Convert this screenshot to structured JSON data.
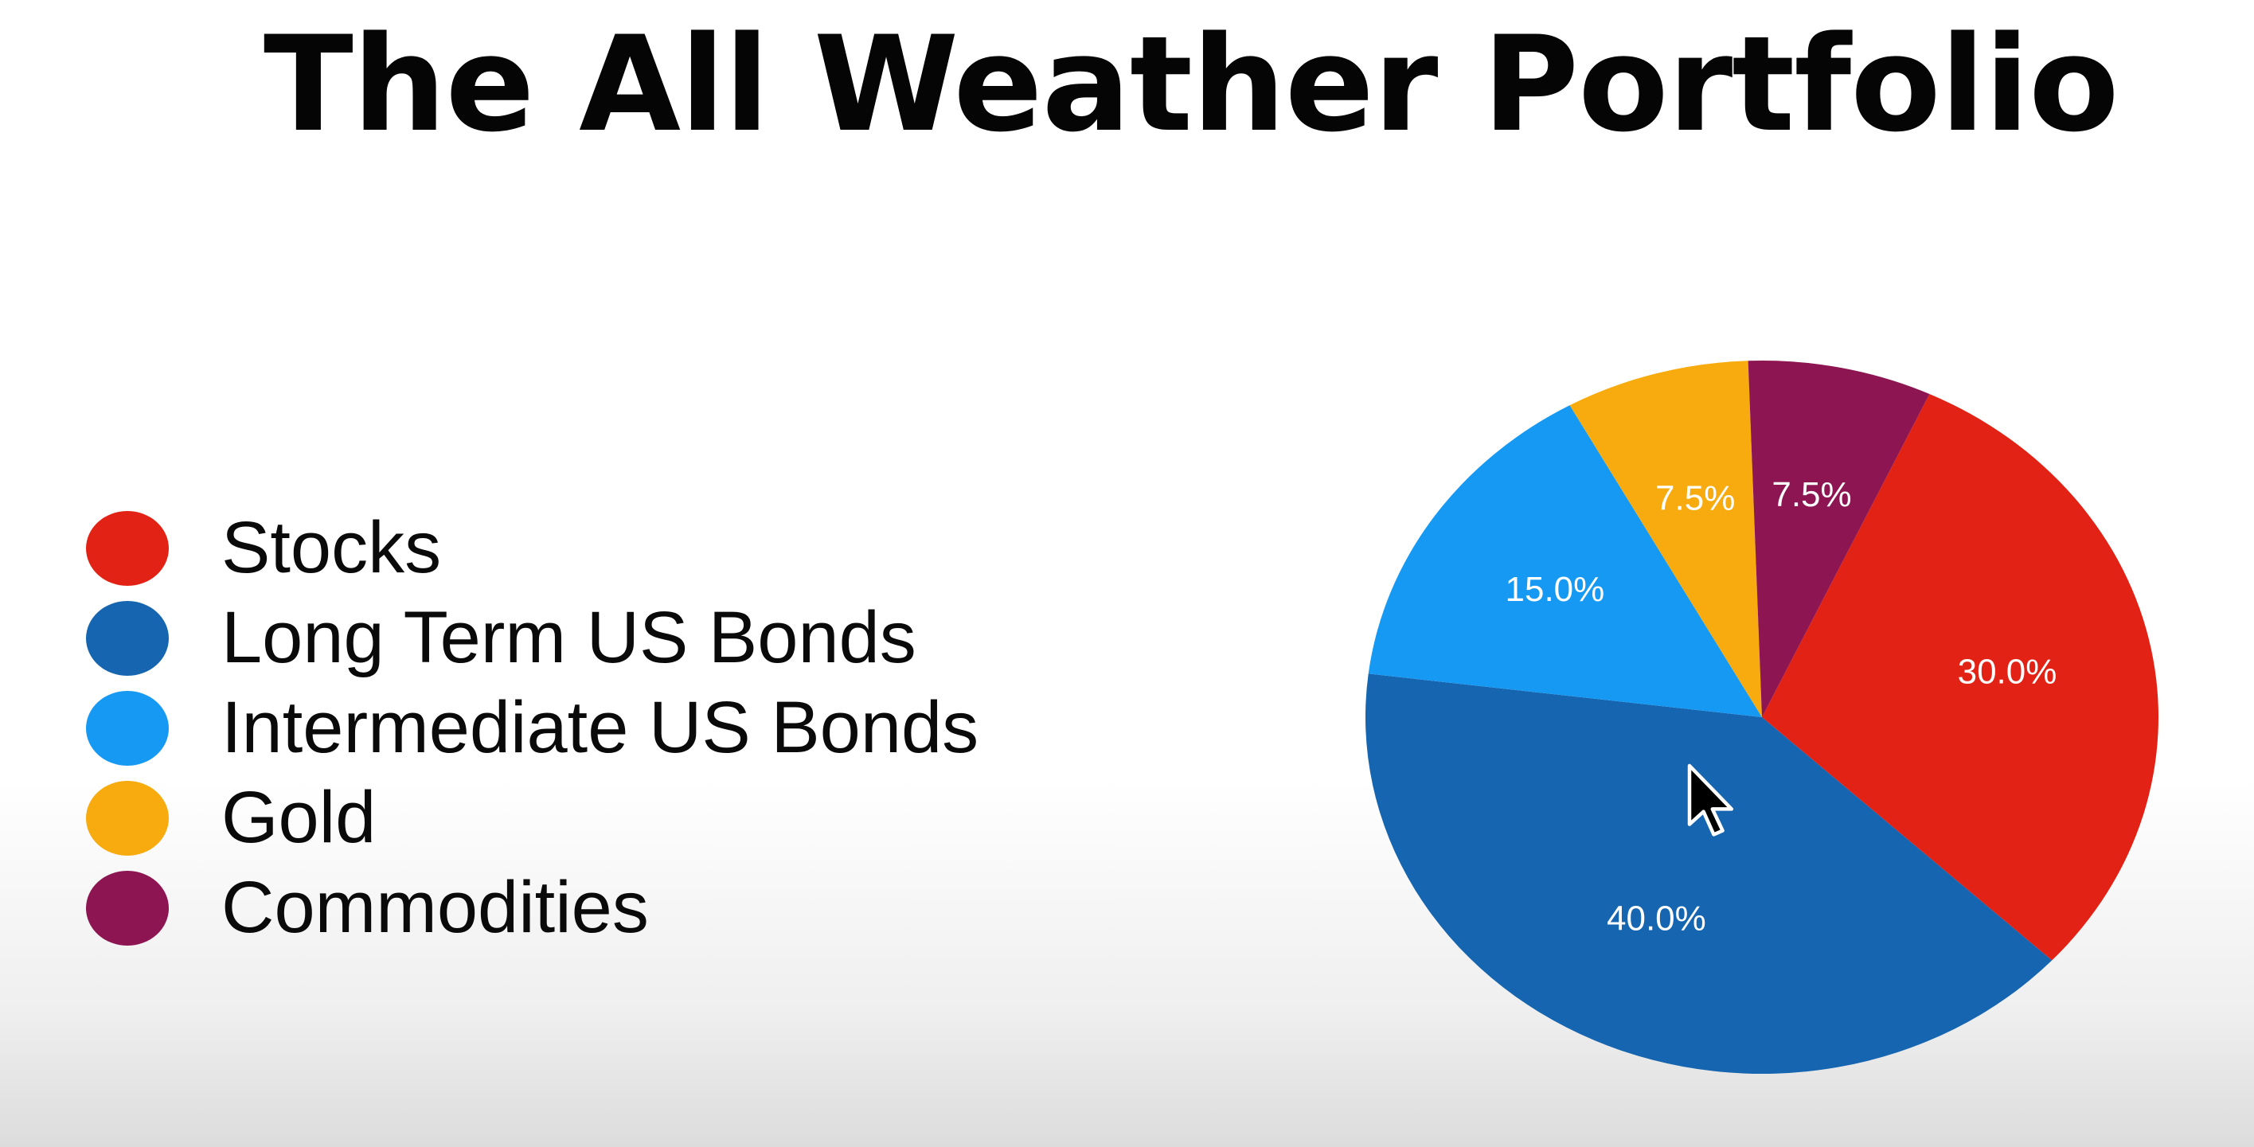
{
  "slide": {
    "title": "The All Weather Portfolio"
  },
  "chart_data": {
    "type": "pie",
    "title": "The All Weather Portfolio",
    "categories": [
      "Stocks",
      "Long Term US Bonds",
      "Intermediate US Bonds",
      "Gold",
      "Commodities"
    ],
    "values": [
      30.0,
      40.0,
      15.0,
      7.5,
      7.5
    ],
    "value_labels": [
      "30.0%",
      "40.0%",
      "15.0%",
      "7.5%",
      "7.5%"
    ],
    "colors": [
      "#e32216",
      "#1565b0",
      "#1699f3",
      "#f7ab0f",
      "#8c1552"
    ],
    "start_angle_deg": 25,
    "direction": "clockwise",
    "legend": {
      "position": "left",
      "entries": [
        {
          "label": "Stocks",
          "color": "#e32216"
        },
        {
          "label": "Long Term US Bonds",
          "color": "#1565b0"
        },
        {
          "label": "Intermediate US Bonds",
          "color": "#1699f3"
        },
        {
          "label": "Gold",
          "color": "#f7ab0f"
        },
        {
          "label": "Commodities",
          "color": "#8c1552"
        }
      ]
    }
  },
  "cursor": {
    "icon": "mouse-pointer-icon"
  }
}
